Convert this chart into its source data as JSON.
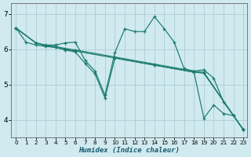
{
  "bg_color": "#d0eaef",
  "line_color": "#1a7a6e",
  "grid_color": "#aecdd4",
  "xlabel": "Humidex (Indice chaleur)",
  "xlim": [
    -0.5,
    23.4
  ],
  "ylim": [
    3.5,
    7.3
  ],
  "yticks": [
    4,
    5,
    6,
    7
  ],
  "xticks": [
    0,
    1,
    2,
    3,
    4,
    5,
    6,
    7,
    8,
    9,
    10,
    11,
    12,
    13,
    14,
    15,
    16,
    17,
    18,
    19,
    20,
    21,
    22,
    23
  ],
  "series": [
    {
      "x": [
        0,
        1,
        2,
        3,
        4,
        5,
        6,
        10,
        14,
        18,
        19,
        23
      ],
      "y": [
        6.6,
        6.2,
        6.12,
        6.08,
        6.05,
        6.0,
        5.95,
        5.75,
        5.55,
        5.35,
        5.32,
        3.72
      ]
    },
    {
      "x": [
        0,
        2,
        3,
        4,
        5,
        6,
        7,
        8,
        9,
        10,
        11,
        12,
        13,
        14,
        15,
        16,
        17,
        18,
        19,
        20,
        21,
        22,
        23
      ],
      "y": [
        6.6,
        6.18,
        6.12,
        6.12,
        6.18,
        6.2,
        5.68,
        5.38,
        4.7,
        5.9,
        6.58,
        6.5,
        6.5,
        6.92,
        6.58,
        6.2,
        5.45,
        5.38,
        5.42,
        5.18,
        4.5,
        4.12,
        3.72
      ]
    },
    {
      "x": [
        0,
        2,
        3,
        4,
        5,
        6,
        10,
        14,
        18,
        19,
        23
      ],
      "y": [
        6.6,
        6.18,
        6.1,
        6.08,
        6.02,
        5.98,
        5.78,
        5.58,
        5.38,
        5.35,
        3.72
      ]
    },
    {
      "x": [
        0,
        2,
        3,
        4,
        5,
        6,
        7,
        8,
        9,
        10,
        14,
        18,
        19,
        20,
        21,
        22,
        23
      ],
      "y": [
        6.6,
        6.18,
        6.1,
        6.05,
        5.98,
        5.92,
        5.6,
        5.3,
        4.62,
        5.75,
        5.55,
        5.35,
        4.05,
        4.42,
        4.18,
        4.12,
        3.72
      ]
    }
  ]
}
